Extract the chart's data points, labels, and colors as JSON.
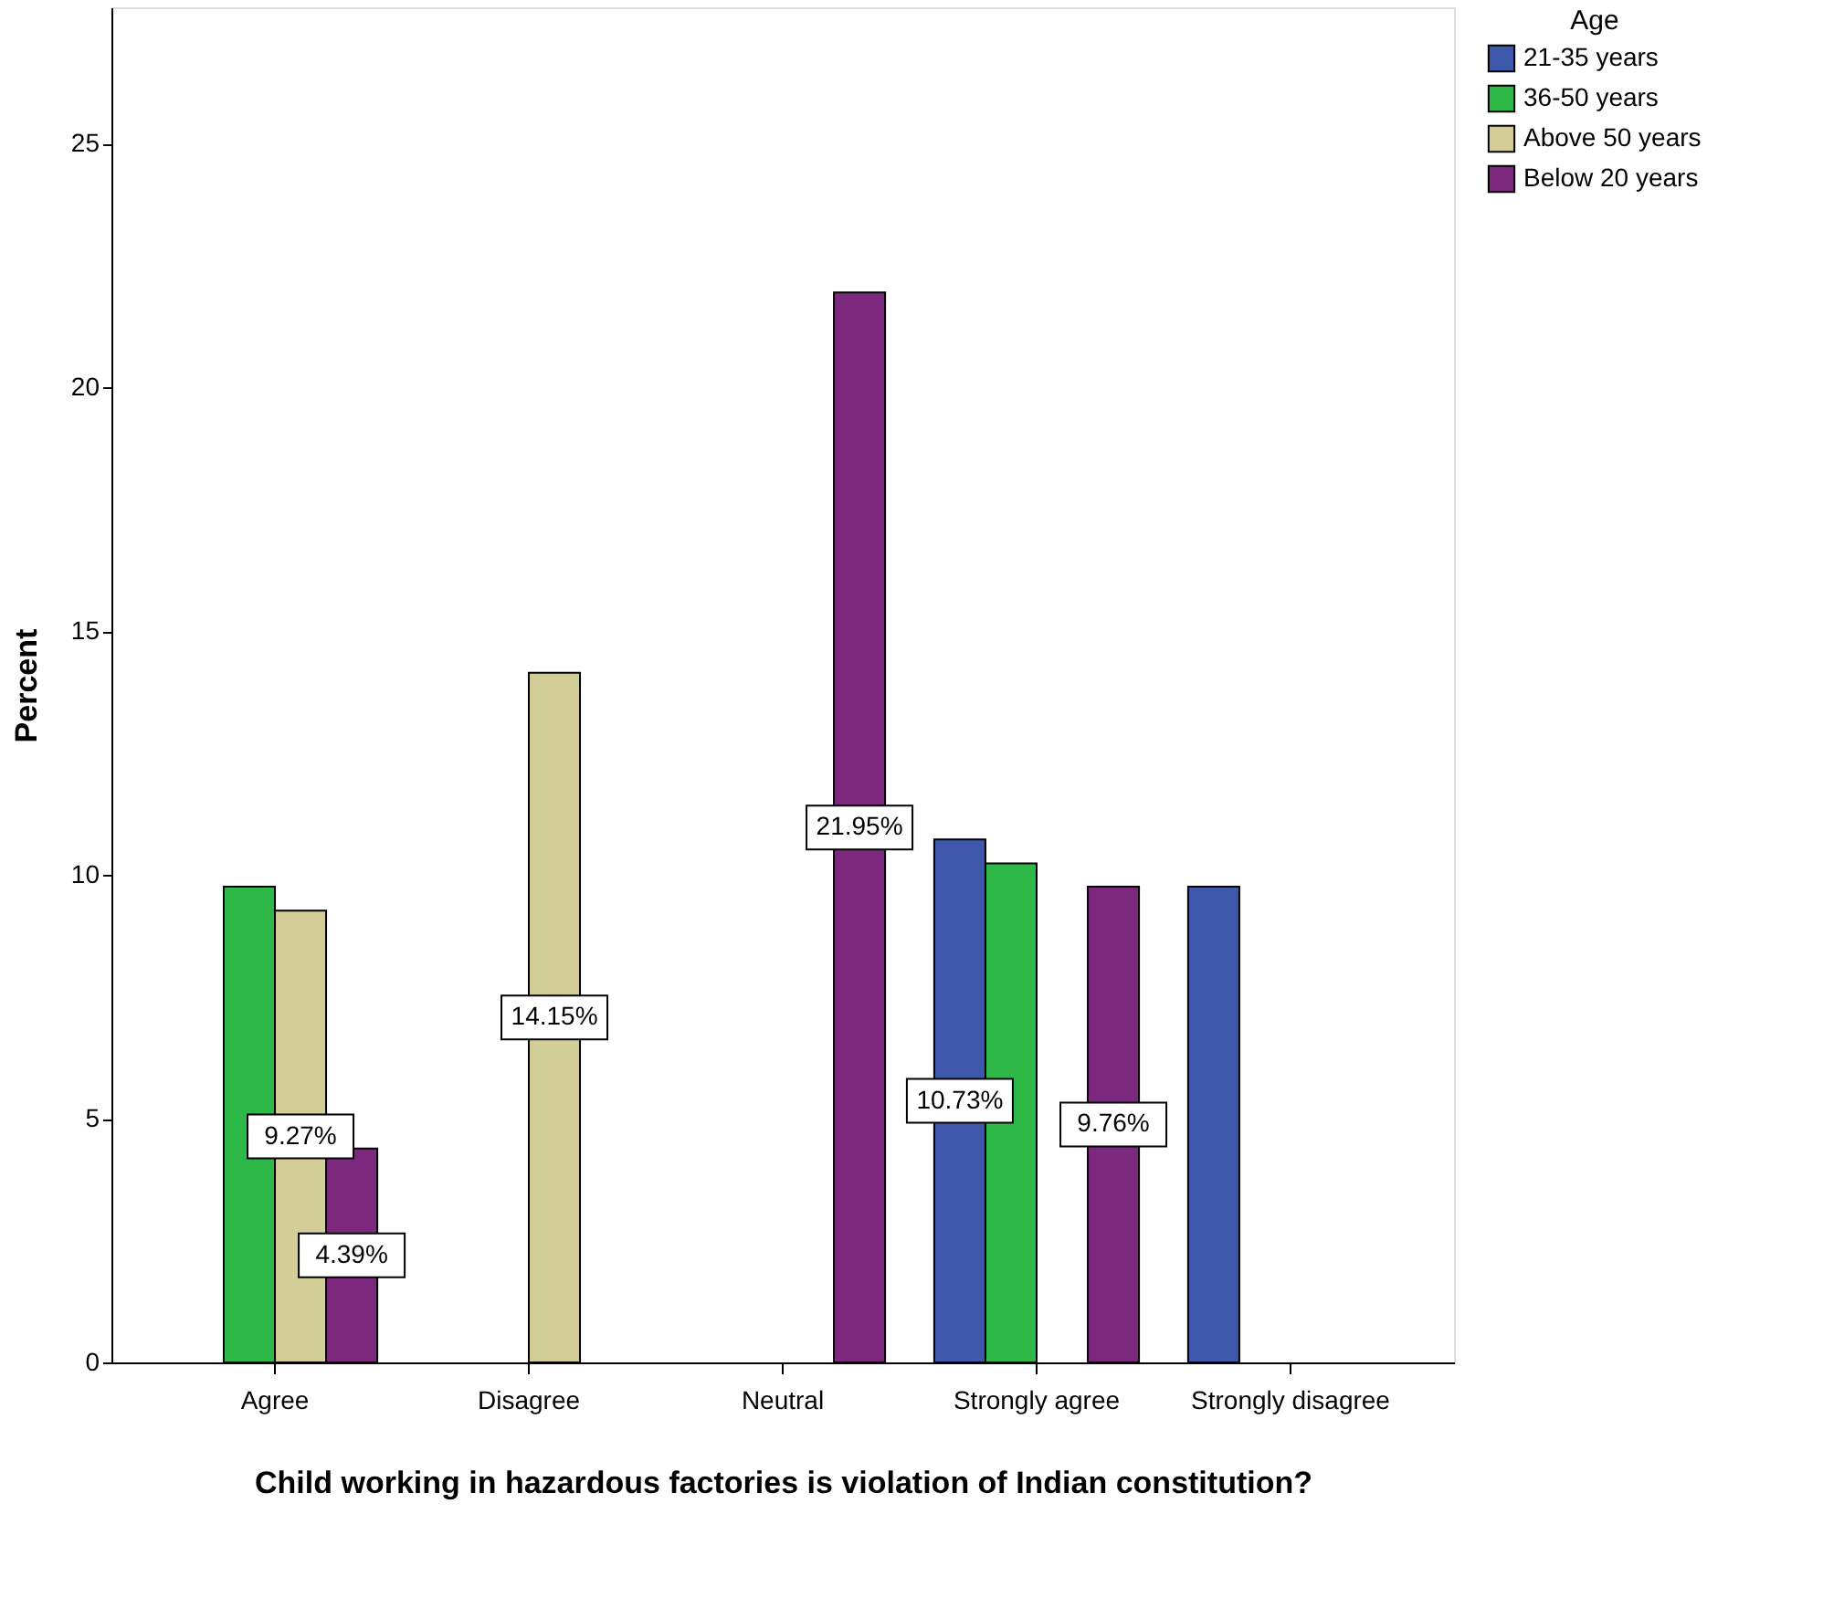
{
  "chart_data": {
    "type": "bar",
    "xlabel": "Child working in hazardous factories is violation of Indian constitution?",
    "ylabel": "Percent",
    "legend_title": "Age",
    "legend": "top right",
    "grid": false,
    "categories": [
      "Agree",
      "Disagree",
      "Neutral",
      "Strongly agree",
      "Strongly disagree"
    ],
    "ylim": [
      0,
      27.8
    ],
    "yticks": [
      0,
      5,
      10,
      15,
      20,
      25
    ],
    "series": [
      {
        "name": "21-35 years",
        "color": "#3e58ac",
        "values": [
          null,
          null,
          null,
          10.73,
          9.76
        ],
        "value_labels": [
          null,
          null,
          null,
          "10.73%",
          null
        ]
      },
      {
        "name": "36-50 years",
        "color": "#2eb848",
        "values": [
          9.76,
          null,
          null,
          10.24,
          null
        ],
        "value_labels": [
          null,
          null,
          null,
          null,
          null
        ]
      },
      {
        "name": "Above 50 years",
        "color": "#d3ce97",
        "values": [
          9.27,
          14.15,
          null,
          null,
          null
        ],
        "value_labels": [
          "9.27%",
          "14.15%",
          null,
          null,
          null
        ]
      },
      {
        "name": "Below 20 years",
        "color": "#7c287d",
        "values": [
          4.39,
          null,
          21.95,
          9.76,
          null
        ],
        "value_labels": [
          "4.39%",
          null,
          "21.95%",
          "9.76%",
          null
        ]
      }
    ]
  }
}
